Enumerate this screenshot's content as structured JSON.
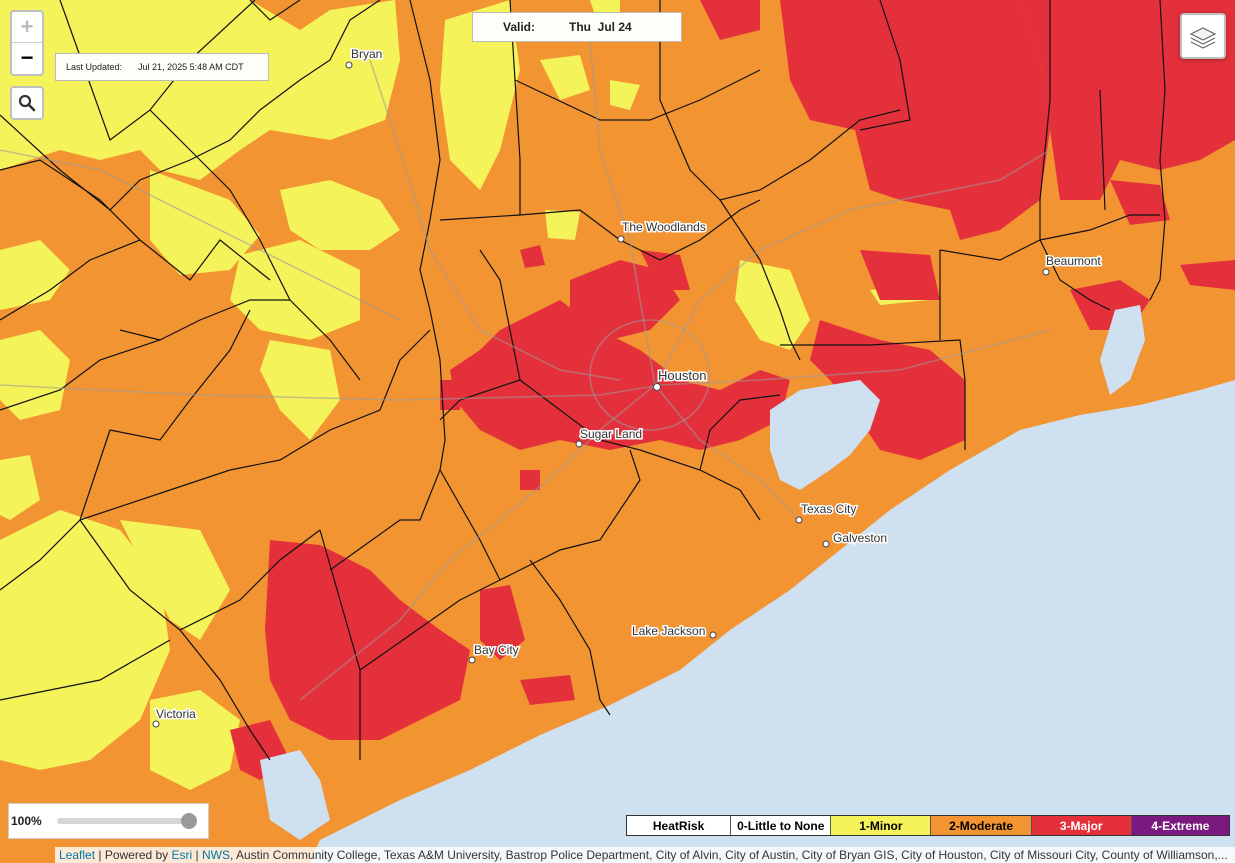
{
  "map": {
    "colors": {
      "moderate": "#f39433",
      "minor": "#f5f35a",
      "major": "#e4303b",
      "water": "#cfe0f1",
      "border": "#111111"
    },
    "cities": [
      {
        "name": "Bryan"
      },
      {
        "name": "The Woodlands"
      },
      {
        "name": "Houston"
      },
      {
        "name": "Sugar Land"
      },
      {
        "name": "Beaumont"
      },
      {
        "name": "Texas City"
      },
      {
        "name": "Galveston"
      },
      {
        "name": "Lake Jackson"
      },
      {
        "name": "Bay City"
      },
      {
        "name": "Victoria"
      }
    ]
  },
  "controls": {
    "zoom_in": "+",
    "zoom_out": "−",
    "search_icon": "magnifier",
    "layers_icon": "stacked-layers"
  },
  "last_updated": {
    "label": "Last Updated:",
    "value": "Jul 21, 2025 5:48 AM CDT"
  },
  "valid": {
    "label": "Valid:",
    "value": "Thu  Jul 24"
  },
  "opacity": {
    "label": "100%",
    "level": 1.0
  },
  "legend": {
    "title": "HeatRisk",
    "items": [
      {
        "label": "0-Little to None",
        "color": "#ffffff",
        "text_color": "#000000"
      },
      {
        "label": "1-Minor",
        "color": "#f5f35a",
        "text_color": "#000000"
      },
      {
        "label": "2-Moderate",
        "color": "#f39433",
        "text_color": "#000000"
      },
      {
        "label": "3-Major",
        "color": "#e4303b",
        "text_color": "#ffffff"
      },
      {
        "label": "4-Extreme",
        "color": "#7b1a7e",
        "text_color": "#ffffff"
      }
    ]
  },
  "attribution": {
    "leaflet": "Leaflet",
    "powered": " | Powered by ",
    "esri": "Esri",
    "sep": " | ",
    "nws": "NWS",
    "rest": ", Austin Community College, Texas A&M University, Bastrop Police Department, City of Alvin, City of Austin, City of Bryan GIS, City of Houston, City of Missouri City, County of Williamson,..."
  }
}
